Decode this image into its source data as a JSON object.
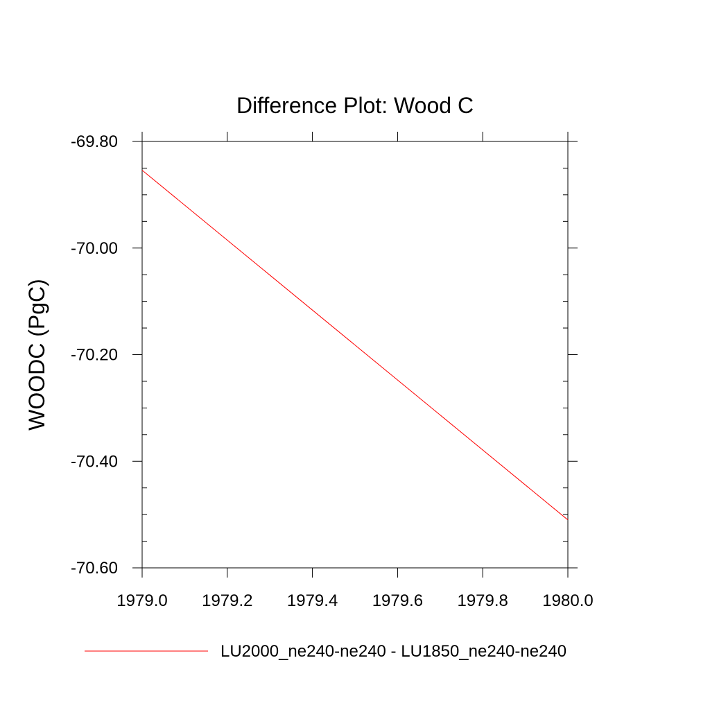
{
  "chart_data": {
    "type": "line",
    "title": "Difference Plot: Wood C",
    "xlabel": "",
    "ylabel": "WOODC  (PgC)",
    "xlim": [
      1979.0,
      1980.0
    ],
    "ylim": [
      -70.6,
      -69.8
    ],
    "x_ticks": [
      1979.0,
      1979.2,
      1979.4,
      1979.6,
      1979.8,
      1980.0
    ],
    "x_tick_labels": [
      "1979.0",
      "1979.2",
      "1979.4",
      "1979.6",
      "1979.8",
      "1980.0"
    ],
    "y_ticks": [
      -69.8,
      -70.0,
      -70.2,
      -70.4,
      -70.6
    ],
    "y_tick_labels": [
      "-69.80",
      "-70.00",
      "-70.20",
      "-70.40",
      "-70.60"
    ],
    "grid": false,
    "legend_position": "bottom",
    "series": [
      {
        "name": "LU2000_ne240-ne240 - LU1850_ne240-ne240",
        "color": "#ff0000",
        "x": [
          1979.0,
          1980.0
        ],
        "y": [
          -69.854,
          -70.51
        ]
      }
    ]
  }
}
